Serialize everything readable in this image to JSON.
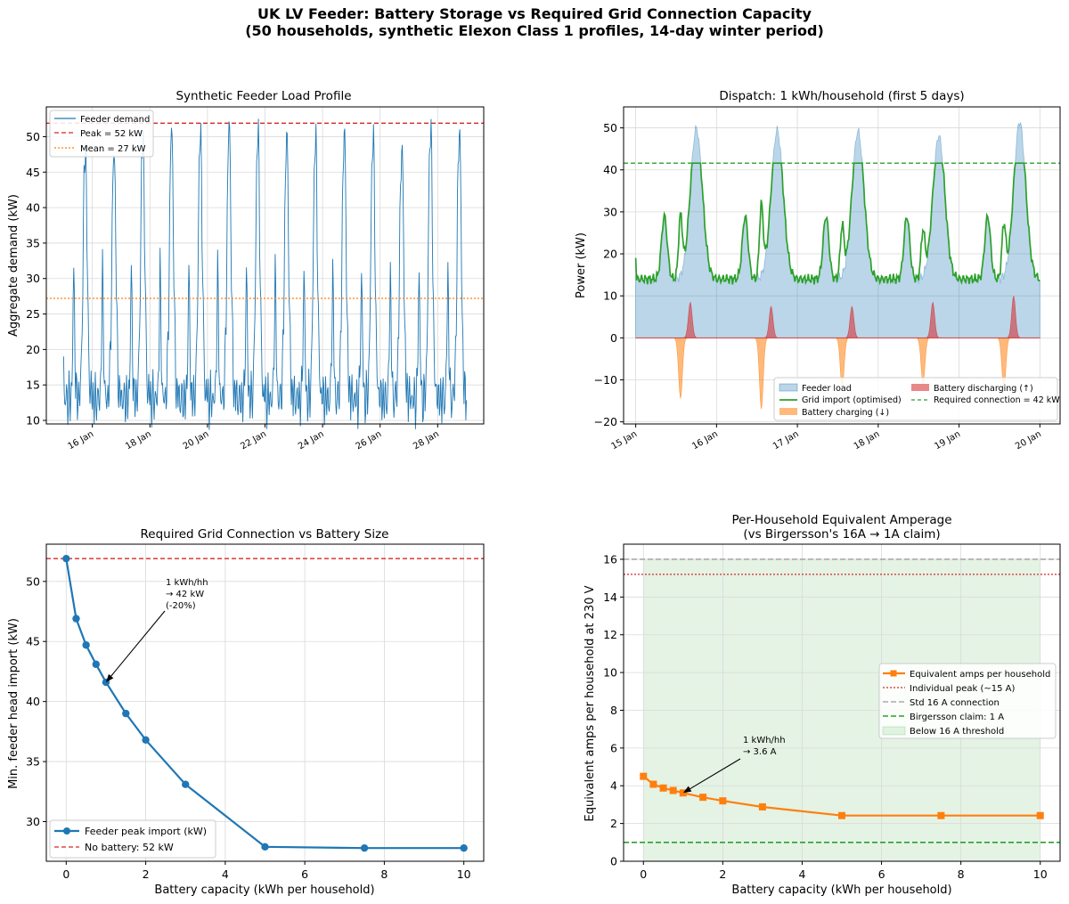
{
  "figure": {
    "title_line1": "UK LV Feeder: Battery Storage vs Required Grid Connection Capacity",
    "title_line2": "(50 households, synthetic Elexon Class 1 profiles, 14-day winter period)"
  },
  "chart_data": [
    {
      "id": "load_profile",
      "type": "line",
      "title": "Synthetic Feeder Load Profile",
      "xlabel": "",
      "ylabel": "Aggregate demand (kW)",
      "x_start": "15 Jan",
      "x_end": "29 Jan",
      "xlim_days": [
        14.4,
        29.6
      ],
      "ylim": [
        9.5,
        54.2
      ],
      "yticks": [
        10,
        15,
        20,
        25,
        30,
        35,
        40,
        45,
        50
      ],
      "xticks": [
        {
          "day": 16,
          "label": "16 Jan"
        },
        {
          "day": 18,
          "label": "18 Jan"
        },
        {
          "day": 20,
          "label": "20 Jan"
        },
        {
          "day": 22,
          "label": "22 Jan"
        },
        {
          "day": 24,
          "label": "24 Jan"
        },
        {
          "day": 26,
          "label": "26 Jan"
        },
        {
          "day": 28,
          "label": "28 Jan"
        }
      ],
      "series": [
        {
          "name": "Feeder demand",
          "color": "#1f77b4",
          "daily_peaks_kW": [
            48.5,
            48.3,
            50.2,
            51.5,
            50.8,
            52.0,
            51.0,
            50.5,
            50.2,
            51.0,
            50.5,
            48.8,
            52.0,
            51.5
          ],
          "evening_shoulder_kW": 30,
          "overnight_min_kW": 13
        },
        {
          "name": "Peak = 52 kW",
          "value": 51.9,
          "color": "#d62728",
          "style": "dashed"
        },
        {
          "name": "Mean = 27 kW",
          "value": 27.2,
          "color": "#ff7f0e",
          "style": "dotted"
        }
      ],
      "legend": "upper left",
      "grid": true
    },
    {
      "id": "dispatch",
      "type": "area",
      "title": "Dispatch: 1 kWh/household (first 5 days)",
      "xlabel": "",
      "ylabel": "Power (kW)",
      "ylim": [
        -20.5,
        55
      ],
      "yticks": [
        -20,
        -10,
        0,
        10,
        20,
        30,
        40,
        50
      ],
      "xlim_days": [
        14.85,
        20.25
      ],
      "xticks": [
        {
          "day": 15,
          "label": "15 Jan"
        },
        {
          "day": 16,
          "label": "16 Jan"
        },
        {
          "day": 17,
          "label": "17 Jan"
        },
        {
          "day": 18,
          "label": "18 Jan"
        },
        {
          "day": 19,
          "label": "19 Jan"
        },
        {
          "day": 20,
          "label": "20 Jan"
        }
      ],
      "series": [
        {
          "name": "Feeder load",
          "color": "#1f77b4",
          "daily_peaks_kW": [
            50.0,
            49.5,
            49.3,
            48.2,
            51.5
          ]
        },
        {
          "name": "Grid import (optimised)",
          "color": "#2ca02c",
          "cap_kW": 41.6
        },
        {
          "name": "Battery charging (↓)",
          "color": "#ff7f0e",
          "daily_min_kW": [
            -14.5,
            -17.0,
            -12.0,
            -11.0,
            -12.5
          ]
        },
        {
          "name": "Battery discharging (↑)",
          "color": "#d62728",
          "daily_max_kW": [
            8.5,
            7.5,
            7.5,
            8.5,
            10.0
          ]
        },
        {
          "name": "Required connection = 42 kW",
          "value": 41.6,
          "color": "#2ca02c",
          "style": "dashed"
        }
      ],
      "legend": "lower right",
      "grid": true
    },
    {
      "id": "connection_vs_battery",
      "type": "line",
      "title": "Required Grid Connection vs Battery Size",
      "xlabel": "Battery capacity (kWh per household)",
      "ylabel": "Min. feeder head import (kW)",
      "xlim": [
        -0.5,
        10.5
      ],
      "ylim": [
        26.7,
        53.1
      ],
      "xticks": [
        0,
        2,
        4,
        6,
        8,
        10
      ],
      "yticks": [
        30,
        35,
        40,
        45,
        50
      ],
      "x": [
        0,
        0.25,
        0.5,
        0.75,
        1,
        1.5,
        2,
        3,
        5,
        7.5,
        10
      ],
      "series": [
        {
          "name": "Feeder peak import (kW)",
          "values": [
            51.9,
            46.9,
            44.7,
            43.1,
            41.6,
            39.0,
            36.8,
            33.1,
            27.9,
            27.8,
            27.8
          ],
          "color": "#1f77b4"
        },
        {
          "name": "No battery: 52 kW",
          "value": 51.9,
          "color": "#d62728",
          "style": "dashed"
        }
      ],
      "annotation": {
        "line1": "1 kWh/hh",
        "line2": "→ 42 kW",
        "line3": "(-20%)",
        "x": 1,
        "y": 41.6
      },
      "legend": "lower left",
      "grid": true
    },
    {
      "id": "amps_per_household",
      "type": "line",
      "title_line1": "Per-Household Equivalent Amperage",
      "title_line2": "(vs Birgersson's 16A → 1A claim)",
      "xlabel": "Battery capacity (kWh per household)",
      "ylabel": "Equivalent amps per household at 230 V",
      "xlim": [
        -0.5,
        10.5
      ],
      "ylim": [
        0,
        16.8
      ],
      "xticks": [
        0,
        2,
        4,
        6,
        8,
        10
      ],
      "yticks": [
        0,
        2,
        4,
        6,
        8,
        10,
        12,
        14,
        16
      ],
      "x": [
        0,
        0.25,
        0.5,
        0.75,
        1,
        1.5,
        2,
        3,
        5,
        7.5,
        10
      ],
      "series": [
        {
          "name": "Equivalent amps per household",
          "values": [
            4.5,
            4.08,
            3.88,
            3.75,
            3.62,
            3.39,
            3.2,
            2.88,
            2.42,
            2.42,
            2.42
          ],
          "color": "#ff7f0e"
        },
        {
          "name": "Individual peak (~15 A)",
          "value": 15.2,
          "color": "#d62728",
          "style": "dotted"
        },
        {
          "name": "Std 16 A connection",
          "value": 16,
          "color": "#aaaaaa",
          "style": "dashed"
        },
        {
          "name": "Birgersson claim: 1 A",
          "value": 1,
          "color": "#2ca02c",
          "style": "dashed"
        },
        {
          "name": "Below 16 A threshold",
          "color": "#2ca02c",
          "fill": true
        }
      ],
      "annotation": {
        "line1": "1 kWh/hh",
        "line2": "→ 3.6 A",
        "x": 1,
        "y": 3.62
      },
      "legend": "center right",
      "grid": true
    }
  ]
}
